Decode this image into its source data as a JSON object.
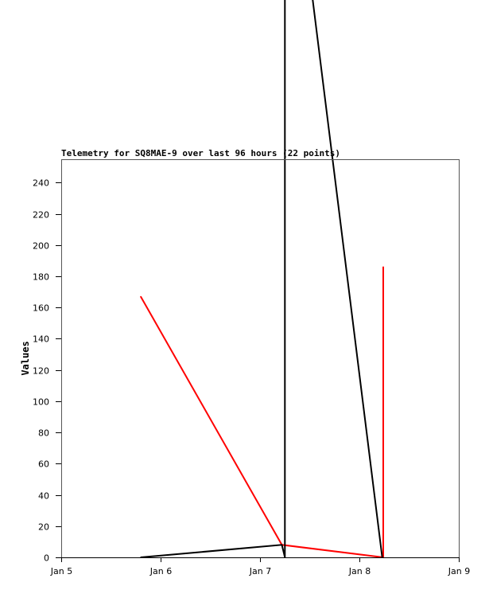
{
  "chart_data": {
    "type": "line",
    "title": "Telemetry for SQ8MAE-9 over last 96 hours (22 points)",
    "xlabel": "",
    "ylabel": "Values",
    "xlim": [
      "Jan 5 00:00",
      "Jan 9 00:00"
    ],
    "ylim": [
      0,
      255
    ],
    "x_ticks": [
      "Jan 5",
      "Jan 6",
      "Jan 7",
      "Jan 8",
      "Jan 9"
    ],
    "y_ticks": [
      0,
      20,
      40,
      60,
      80,
      100,
      120,
      140,
      160,
      180,
      200,
      220,
      240
    ],
    "grid": false,
    "series": [
      {
        "color": "#ff0000",
        "points": [
          {
            "x": "Jan 5 19:12",
            "y": 167
          },
          {
            "x": "Jan 7 05:17",
            "y": 8
          },
          {
            "x": "Jan 8 05:46",
            "y": 0
          },
          {
            "x": "Jan 8 05:46",
            "y": 186
          }
        ]
      },
      {
        "color": "#000000",
        "points": [
          {
            "x": "Jan 5 19:12",
            "y": 0
          },
          {
            "x": "Jan 7 05:17",
            "y": 8
          },
          {
            "x": "Jan 7 06:00",
            "y": 0
          },
          {
            "x": "Jan 7 06:00",
            "y": 500
          },
          {
            "x": "Jan 8 05:31",
            "y": 0
          }
        ]
      }
    ]
  }
}
